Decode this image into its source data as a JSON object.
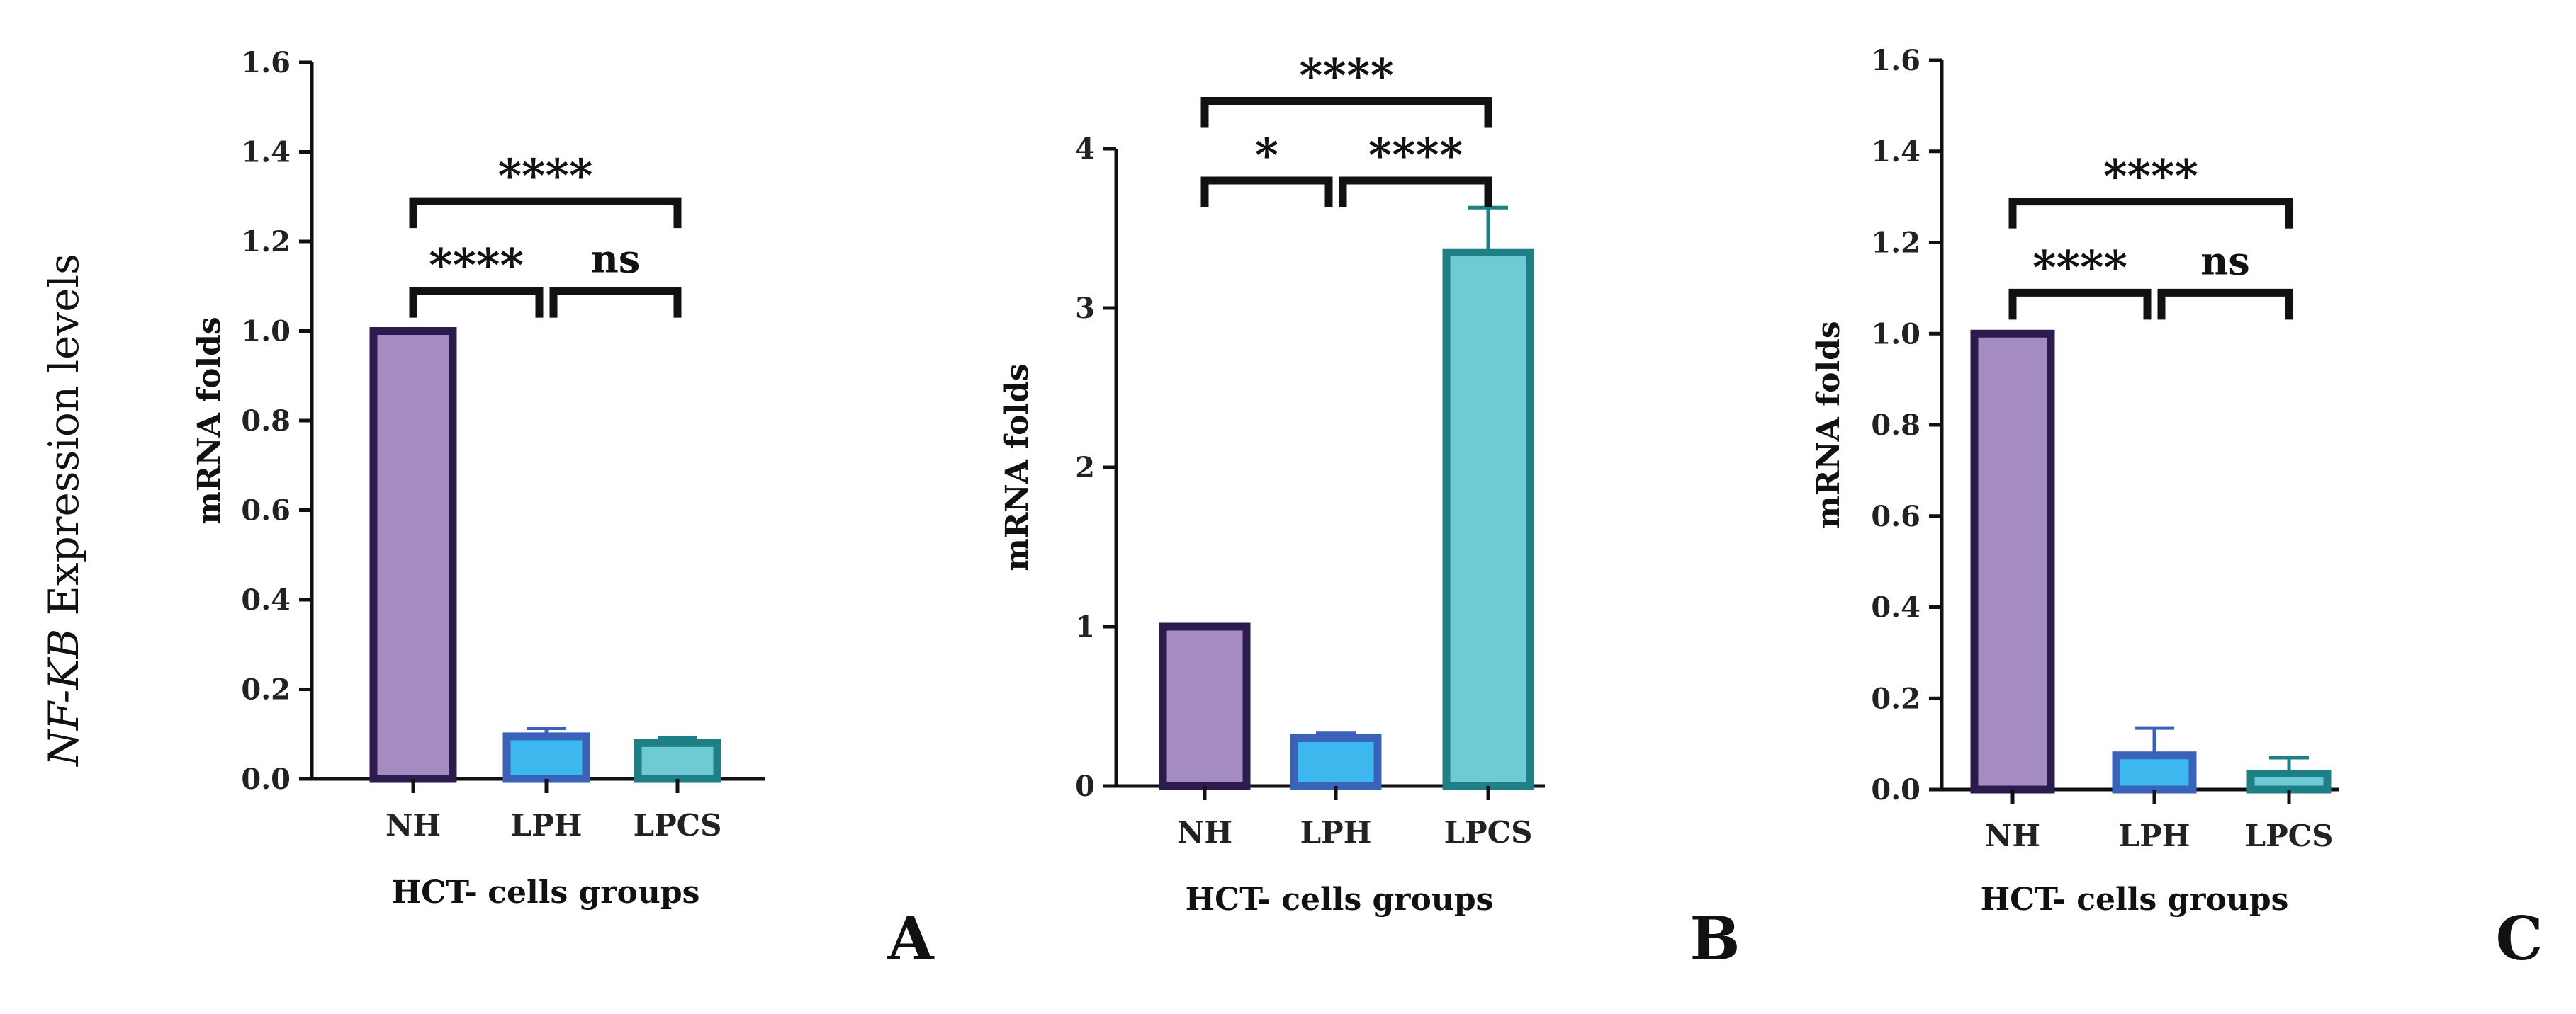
{
  "figure": {
    "ylabel_italic": "NF-KB",
    "ylabel_rest": " Expression levels"
  },
  "chart_data": [
    {
      "panel": "A",
      "type": "bar",
      "categories": [
        "NH",
        "LPH",
        "LPCS"
      ],
      "values": [
        1.0,
        0.095,
        0.08
      ],
      "errors": [
        0.0,
        0.018,
        0.012
      ],
      "ylabel": "mRNA folds",
      "xlabel": "HCT-  cells groups",
      "ylim": [
        0,
        1.6
      ],
      "yticks": [
        "0.0",
        "0.2",
        "0.4",
        "0.6",
        "0.8",
        "1.0",
        "1.2",
        "1.4",
        "1.6"
      ],
      "bar_fill": [
        "#a48cc3",
        "#3cb8ee",
        "#6ecad4"
      ],
      "bar_edge": [
        "#2b1b4f",
        "#3a62b8",
        "#1f7f86"
      ],
      "significance": [
        {
          "from": 0,
          "to": 1,
          "label": "****",
          "level": 1.09
        },
        {
          "from": 1,
          "to": 2,
          "label": "ns",
          "level": 1.09
        },
        {
          "from": 0,
          "to": 2,
          "label": "****",
          "level": 1.29
        }
      ]
    },
    {
      "panel": "B",
      "type": "bar",
      "categories": [
        "NH",
        "LPH",
        "LPCS"
      ],
      "values": [
        1.0,
        0.3,
        3.35
      ],
      "errors": [
        0.0,
        0.03,
        0.28
      ],
      "ylabel": "mRNA folds",
      "xlabel": "HCT-  cells groups",
      "ylim": [
        0,
        4
      ],
      "yticks": [
        "0",
        "1",
        "2",
        "3",
        "4"
      ],
      "bar_fill": [
        "#a48cc3",
        "#3cb8ee",
        "#6ecad4"
      ],
      "bar_edge": [
        "#2b1b4f",
        "#3a62b8",
        "#1f7f86"
      ],
      "significance": [
        {
          "from": 0,
          "to": 1,
          "label": "*",
          "level": 3.8
        },
        {
          "from": 1,
          "to": 2,
          "label": "****",
          "level": 3.8
        },
        {
          "from": 0,
          "to": 2,
          "label": "****",
          "level": 4.3
        }
      ]
    },
    {
      "panel": "C",
      "type": "bar",
      "categories": [
        "NH",
        "LPH",
        "LPCS"
      ],
      "values": [
        1.0,
        0.075,
        0.035
      ],
      "errors": [
        0.0,
        0.06,
        0.035
      ],
      "ylabel": "mRNA folds",
      "xlabel": "HCT-  cells groups",
      "ylim": [
        0,
        1.6
      ],
      "yticks": [
        "0.0",
        "0.2",
        "0.4",
        "0.6",
        "0.8",
        "1.0",
        "1.2",
        "1.4",
        "1.6"
      ],
      "bar_fill": [
        "#a48cc3",
        "#3cb8ee",
        "#6ecad4"
      ],
      "bar_edge": [
        "#2b1b4f",
        "#3a62b8",
        "#1f7f86"
      ],
      "significance": [
        {
          "from": 0,
          "to": 1,
          "label": "****",
          "level": 1.09
        },
        {
          "from": 1,
          "to": 2,
          "label": "ns",
          "level": 1.09
        },
        {
          "from": 0,
          "to": 2,
          "label": "****",
          "level": 1.29
        }
      ]
    }
  ]
}
